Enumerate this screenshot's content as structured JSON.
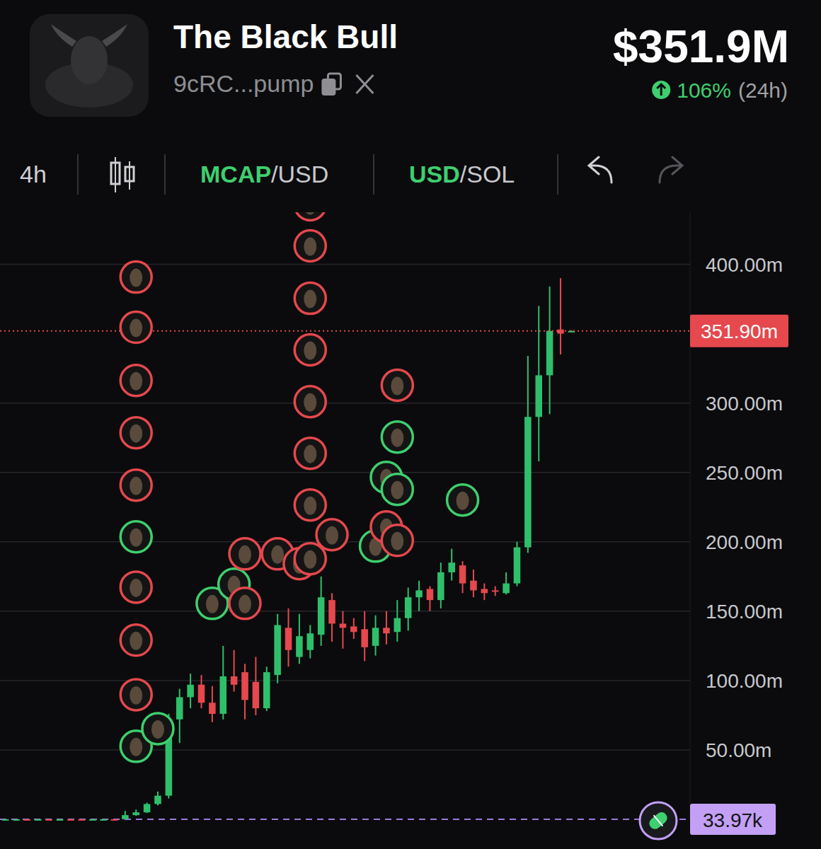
{
  "header": {
    "title": "The Black Bull",
    "address": "9cRC...pump",
    "price": "$351.9M",
    "change": "106%",
    "period": "(24h)"
  },
  "toolbar": {
    "interval": "4h",
    "mcap": "MCAP/USD",
    "currency": "USD/SOL"
  },
  "chart_data": {
    "type": "candlestick",
    "x": [
      0,
      1,
      2,
      3,
      4,
      5,
      6,
      7,
      8,
      9,
      10,
      11,
      12,
      13,
      14,
      15,
      16,
      17,
      18,
      19,
      20,
      21,
      22,
      23,
      24,
      25,
      26,
      27,
      28,
      29,
      30,
      31,
      32,
      33,
      34,
      35,
      36,
      37,
      38,
      39,
      40,
      41,
      42,
      43,
      44,
      45,
      46,
      47,
      48,
      49,
      50,
      51,
      52
    ],
    "series": [
      {
        "open": [
          0.034,
          0.035,
          0.036,
          0.035,
          0.037,
          0.036,
          0.038,
          0.037,
          0.036,
          0.038,
          0.04,
          0.1,
          3,
          5,
          11,
          17,
          72,
          88,
          97,
          84,
          76,
          103,
          106,
          99,
          80,
          104,
          138,
          117,
          122,
          133,
          158,
          141,
          139,
          137,
          125,
          138,
          135,
          145,
          160,
          166,
          158,
          178,
          183,
          172,
          166,
          165,
          163,
          170,
          196,
          290,
          320,
          353,
          351.9
        ],
        "high": [
          0.036,
          0.037,
          0.037,
          0.038,
          0.038,
          0.039,
          0.039,
          0.038,
          0.039,
          0.041,
          0.042,
          6,
          7,
          12,
          20,
          76,
          94,
          105,
          104,
          96,
          125,
          122,
          112,
          117,
          110,
          148,
          152,
          148,
          140,
          175,
          163,
          150,
          145,
          150,
          147,
          150,
          158,
          167,
          172,
          168,
          185,
          195,
          186,
          180,
          170,
          168,
          178,
          200,
          334,
          370,
          384,
          390,
          352.5
        ],
        "low": [
          0.034,
          0.034,
          0.035,
          0.034,
          0.035,
          0.035,
          0.036,
          0.036,
          0.035,
          0.037,
          0.037,
          0.09,
          2.5,
          4.5,
          10,
          15,
          55,
          80,
          80,
          70,
          72,
          92,
          72,
          75,
          78,
          98,
          110,
          112,
          116,
          125,
          128,
          123,
          130,
          114,
          118,
          126,
          128,
          136,
          150,
          150,
          152,
          172,
          163,
          160,
          158,
          161,
          162,
          168,
          192,
          258,
          292,
          335,
          351.3
        ],
        "close": [
          0.035,
          0.036,
          0.035,
          0.037,
          0.036,
          0.038,
          0.037,
          0.036,
          0.038,
          0.04,
          0.039,
          3,
          5,
          11,
          17,
          72,
          88,
          97,
          84,
          76,
          103,
          97,
          86,
          80,
          106,
          140,
          122,
          132,
          134,
          160,
          141,
          138,
          135,
          124,
          138,
          134,
          145,
          160,
          165,
          158,
          178,
          185,
          170,
          165,
          163,
          164,
          170,
          196,
          290,
          320,
          352,
          350,
          351.9
        ]
      }
    ],
    "xlim": [
      -0.5,
      62.9
    ],
    "ylim": [
      0,
      437.5
    ],
    "yticks": [
      {
        "value": 50,
        "label": "50.00m"
      },
      {
        "value": 100,
        "label": "100.00m"
      },
      {
        "value": 150,
        "label": "150.00m"
      },
      {
        "value": 200,
        "label": "200.00m"
      },
      {
        "value": 250,
        "label": "250.00m"
      },
      {
        "value": 300,
        "label": "300.00m"
      },
      {
        "value": 400,
        "label": "400.00m"
      }
    ],
    "grid": true,
    "tick_labels": "y",
    "price_line": {
      "value": 351.9,
      "label": "351.90m"
    },
    "base_line": {
      "value": 0.03397,
      "label": "33.97k"
    },
    "markers": {
      "x": [
        12,
        12,
        12,
        12,
        12,
        12,
        12,
        12,
        12,
        12,
        14,
        19,
        21,
        22,
        22,
        25,
        27,
        28,
        28,
        28,
        28,
        28,
        28,
        28,
        28,
        30,
        34,
        35,
        35,
        36,
        36,
        36,
        36,
        42
      ],
      "y": [
        390.8,
        354.6,
        316.3,
        278.6,
        240.8,
        203.6,
        167.3,
        129.1,
        89.8,
        52.6,
        65.3,
        155.6,
        169.4,
        191.3,
        155.6,
        191.3,
        184.2,
        442.9,
        413.3,
        375.5,
        338.3,
        301,
        263.8,
        226.5,
        187.8,
        205.1,
        196.9,
        246.4,
        210.7,
        312.8,
        275.5,
        237.8,
        201,
        230.1
      ],
      "colors": [
        "#e5484d",
        "#e5484d",
        "#e5484d",
        "#e5484d",
        "#e5484d",
        "#3ecf6e",
        "#e5484d",
        "#e5484d",
        "#e5484d",
        "#3ecf6e",
        "#3ecf6e",
        "#3ecf6e",
        "#3ecf6e",
        "#e5484d",
        "#e5484d",
        "#e5484d",
        "#e5484d",
        "#e5484d",
        "#e5484d",
        "#e5484d",
        "#e5484d",
        "#e5484d",
        "#e5484d",
        "#e5484d",
        "#e5484d",
        "#e5484d",
        "#3ecf6e",
        "#3ecf6e",
        "#e5484d",
        "#e5484d",
        "#3ecf6e",
        "#3ecf6e",
        "#e5484d",
        "#3ecf6e"
      ]
    }
  }
}
